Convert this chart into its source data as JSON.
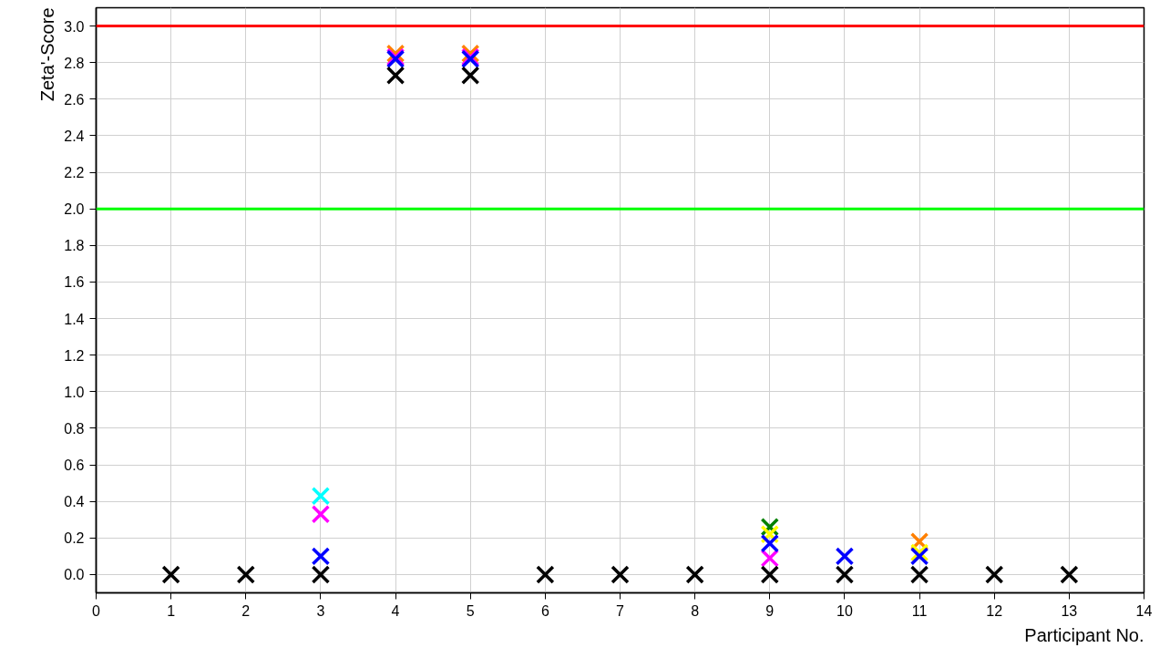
{
  "chart_data": {
    "type": "scatter",
    "xlabel": "Participant No.",
    "ylabel": "Zeta'-Score",
    "xlim": [
      0,
      14
    ],
    "xticks": [
      0,
      1,
      2,
      3,
      4,
      5,
      6,
      7,
      8,
      9,
      10,
      11,
      12,
      13,
      14
    ],
    "ylim": [
      -0.1,
      3.1
    ],
    "yticks": [
      {
        "value": 0,
        "label": "0.0"
      },
      0.2,
      0.4,
      0.6,
      0.8,
      {
        "value": 1,
        "label": "1.0"
      },
      1.2,
      1.4,
      1.6,
      1.8,
      {
        "value": 2,
        "label": "2.0"
      },
      2.2,
      2.4,
      2.6,
      2.8,
      {
        "value": 3,
        "label": "3.0"
      }
    ],
    "grid": true,
    "marker": "cross",
    "x": [
      1,
      2,
      3,
      4,
      5,
      6,
      7,
      8,
      9,
      10,
      11,
      12,
      13
    ],
    "series": [
      {
        "color": "#008000",
        "values": [
          null,
          null,
          null,
          null,
          null,
          null,
          null,
          null,
          0.26,
          null,
          null,
          null,
          null
        ]
      },
      {
        "color": "#ff8000",
        "values": [
          null,
          null,
          null,
          2.85,
          2.85,
          null,
          null,
          null,
          null,
          null,
          0.18,
          null,
          null
        ]
      },
      {
        "color": "#00ffff",
        "values": [
          null,
          null,
          0.43,
          null,
          null,
          null,
          null,
          null,
          null,
          null,
          null,
          null,
          null
        ]
      },
      {
        "color": "#ffff00",
        "values": [
          null,
          null,
          null,
          null,
          null,
          null,
          null,
          null,
          0.22,
          null,
          0.12,
          null,
          null
        ]
      },
      {
        "color": "#ff00ff",
        "values": [
          null,
          null,
          0.33,
          2.83,
          2.83,
          null,
          null,
          null,
          0.09,
          null,
          null,
          null,
          null
        ]
      },
      {
        "color": "#0000ff",
        "values": [
          null,
          null,
          0.1,
          2.82,
          2.82,
          null,
          null,
          null,
          0.17,
          0.1,
          0.1,
          null,
          null
        ]
      },
      {
        "color": "#000000",
        "values": [
          0,
          0,
          0,
          2.73,
          2.73,
          0,
          0,
          0,
          0,
          0,
          0,
          0,
          0
        ]
      }
    ],
    "ref_lines": [
      {
        "axis": "y",
        "value": 3,
        "color": "#ff0000"
      },
      {
        "axis": "y",
        "value": 2,
        "color": "#00ff00"
      }
    ]
  }
}
